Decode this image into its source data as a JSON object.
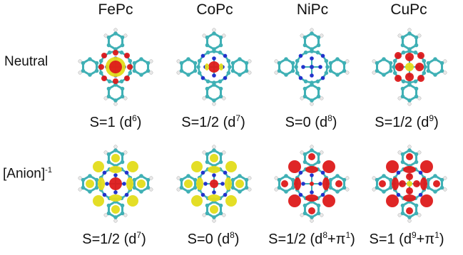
{
  "columns": [
    "FePc",
    "CoPc",
    "NiPc",
    "CuPc"
  ],
  "rows": {
    "neutral": "Neutral",
    "anion": "[Anion]",
    "anion_charge": "-1"
  },
  "spin_states": {
    "neutral": [
      {
        "text": "S=1 (d",
        "sup": "6",
        "rest": ")"
      },
      {
        "text": "S=1/2 (d",
        "sup": "7",
        "rest": ")"
      },
      {
        "text": "S=0 (d",
        "sup": "8",
        "rest": ")"
      },
      {
        "text": "S=1/2 (d",
        "sup": "9",
        "rest": ")"
      }
    ],
    "anion": [
      {
        "text": "S=1/2 (d",
        "sup": "7",
        "rest": ")"
      },
      {
        "text": "S=0 (d",
        "sup": "8",
        "rest": ")"
      },
      {
        "text": "S=1/2 (d",
        "sup": "8",
        "rest": "+π",
        "sup2": "1",
        "rest2": ")"
      },
      {
        "text": "S=1 (d",
        "sup": "9",
        "rest": "+π",
        "sup2": "1",
        "rest2": ")"
      }
    ]
  },
  "colors": {
    "carbon": "#3fb0b5",
    "nitrogen": "#2233cc",
    "hydrogen": "#e8e8e8",
    "density_yellow": "#e3dc1a",
    "density_red": "#dd1a1a",
    "metal_center": "#d01010"
  }
}
